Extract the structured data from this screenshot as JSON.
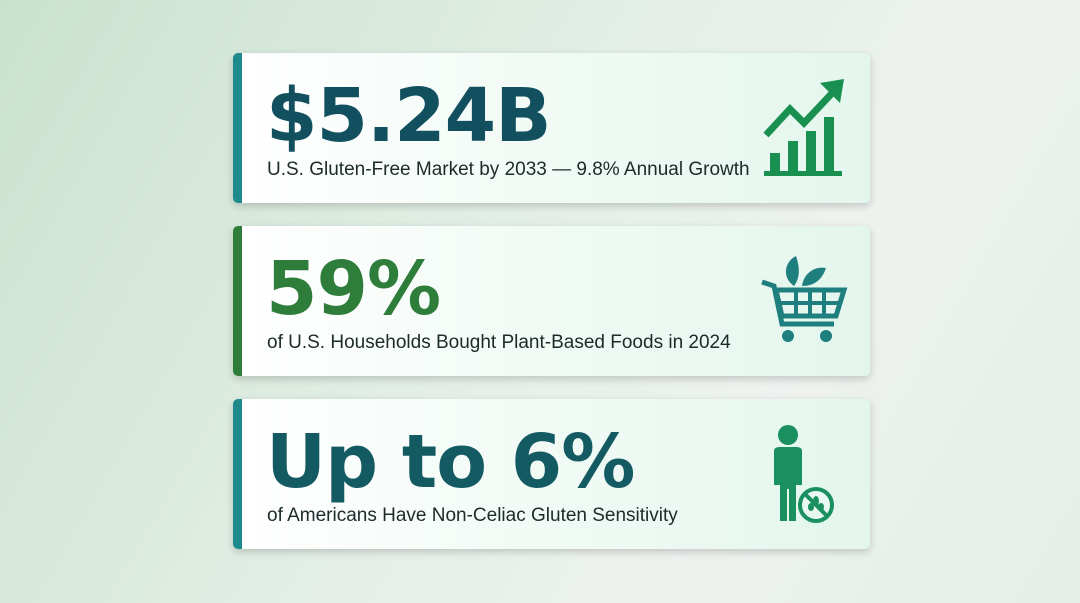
{
  "cards": [
    {
      "value": "$5.24B",
      "subtitle": "U.S. Gluten-Free Market by 2033 — 9.8% Annual Growth",
      "icon": "growth-chart-icon",
      "accent": "#1f8a8c",
      "value_color": "#13505f"
    },
    {
      "value": "59%",
      "subtitle": "of U.S. Households Bought Plant-Based Foods in 2024",
      "icon": "shopping-cart-leaf-icon",
      "accent": "#2e7d3a",
      "value_color": "#2e7d3a"
    },
    {
      "value": "Up to 6%",
      "subtitle": "of Americans Have Non-Celiac Gluten Sensitivity",
      "icon": "person-no-gluten-icon",
      "accent": "#1f8a8c",
      "value_color": "#145a63"
    }
  ]
}
